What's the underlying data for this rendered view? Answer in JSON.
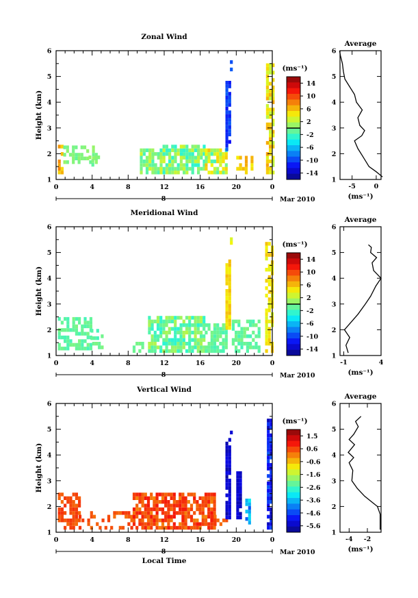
{
  "chart_data": [
    {
      "type": "heatmap",
      "title": "Zonal Wind",
      "ylabel": "Height (km)",
      "xlabel": "",
      "x_ticks": [
        "0",
        "4",
        "8",
        "12",
        "16",
        "20",
        "0"
      ],
      "y_ticks": [
        "1",
        "2",
        "3",
        "4",
        "5",
        "6"
      ],
      "ylim": [
        1,
        6
      ],
      "xlim": [
        0,
        24
      ],
      "day_label": "8",
      "date_label": "Mar 2010",
      "colorbar": {
        "unit": "(ms⁻¹)",
        "ticks": [
          "14",
          "10",
          "6",
          "2",
          "-2",
          "-6",
          "-10",
          "-14"
        ],
        "min": -16,
        "max": 16
      },
      "profile": {
        "title": "Average",
        "xlabel": "(ms⁻¹)",
        "x_ticks": [
          "-5",
          "0"
        ],
        "xlim": [
          -7.5,
          1
        ],
        "points": [
          [
            1.3,
            1.1
          ],
          [
            0,
            1.3
          ],
          [
            -1.5,
            1.5
          ],
          [
            -2.8,
            1.9
          ],
          [
            -3.8,
            2.2
          ],
          [
            -4.5,
            2.5
          ],
          [
            -3.0,
            2.7
          ],
          [
            -2.4,
            2.9
          ],
          [
            -3.4,
            3.1
          ],
          [
            -3.8,
            3.4
          ],
          [
            -2.9,
            3.7
          ],
          [
            -4.1,
            4.0
          ],
          [
            -4.5,
            4.3
          ],
          [
            -5.5,
            4.6
          ],
          [
            -6.5,
            4.9
          ],
          [
            -6.8,
            5.2
          ],
          [
            -7.0,
            5.5
          ],
          [
            -7.4,
            5.8
          ],
          [
            -7.6,
            6.0
          ]
        ]
      }
    },
    {
      "type": "heatmap",
      "title": "Meridional Wind",
      "ylabel": "Height (km)",
      "xlabel": "",
      "x_ticks": [
        "0",
        "4",
        "8",
        "12",
        "16",
        "20",
        "0"
      ],
      "y_ticks": [
        "1",
        "2",
        "3",
        "4",
        "5",
        "6"
      ],
      "ylim": [
        1,
        6
      ],
      "xlim": [
        0,
        24
      ],
      "day_label": "8",
      "date_label": "Mar 2010",
      "colorbar": {
        "unit": "(ms⁻¹)",
        "ticks": [
          "14",
          "10",
          "6",
          "2",
          "-2",
          "-6",
          "-10",
          "-14"
        ],
        "min": -16,
        "max": 16
      },
      "profile": {
        "title": "Average",
        "xlabel": "(ms⁻¹)",
        "x_ticks": [
          "-1",
          "4"
        ],
        "xlim": [
          -1.5,
          4
        ],
        "points": [
          [
            -0.4,
            1.1
          ],
          [
            -0.7,
            1.4
          ],
          [
            -0.2,
            1.7
          ],
          [
            -0.9,
            2.0
          ],
          [
            0.0,
            2.3
          ],
          [
            0.9,
            2.6
          ],
          [
            1.9,
            3.0
          ],
          [
            2.6,
            3.3
          ],
          [
            3.3,
            3.7
          ],
          [
            4.0,
            4.0
          ],
          [
            3.0,
            4.3
          ],
          [
            2.8,
            4.6
          ],
          [
            3.4,
            4.8
          ],
          [
            2.6,
            5.0
          ],
          [
            2.7,
            5.2
          ],
          [
            2.3,
            5.3
          ]
        ]
      }
    },
    {
      "type": "heatmap",
      "title": "Vertical Wind",
      "ylabel": "Height (km)",
      "xlabel": "Local Time",
      "x_ticks": [
        "0",
        "4",
        "8",
        "12",
        "16",
        "20",
        "0"
      ],
      "y_ticks": [
        "1",
        "2",
        "3",
        "4",
        "5",
        "6"
      ],
      "ylim": [
        1,
        6
      ],
      "xlim": [
        0,
        24
      ],
      "day_label": "8",
      "date_label": "Mar 2010",
      "colorbar": {
        "unit": "(ms⁻¹)",
        "ticks": [
          "1.5",
          "0.6",
          "-0.6",
          "-1.6",
          "-2.6",
          "-3.6",
          "-4.6",
          "-5.6"
        ],
        "min": -6.2,
        "max": 1.9
      },
      "profile": {
        "title": "Average",
        "xlabel": "(ms⁻¹)",
        "x_ticks": [
          "-4",
          "-2"
        ],
        "xlim": [
          -5,
          -0.5
        ],
        "points": [
          [
            -0.6,
            1.1
          ],
          [
            -0.6,
            1.4
          ],
          [
            -0.6,
            1.7
          ],
          [
            -0.9,
            2.0
          ],
          [
            -1.6,
            2.2
          ],
          [
            -2.3,
            2.4
          ],
          [
            -3.1,
            2.7
          ],
          [
            -3.7,
            3.0
          ],
          [
            -3.6,
            3.4
          ],
          [
            -4.0,
            3.7
          ],
          [
            -3.5,
            3.9
          ],
          [
            -4.1,
            4.1
          ],
          [
            -3.4,
            4.4
          ],
          [
            -4.0,
            4.6
          ],
          [
            -3.5,
            4.8
          ],
          [
            -3.0,
            5.1
          ],
          [
            -3.3,
            5.3
          ],
          [
            -2.7,
            5.5
          ]
        ]
      }
    }
  ],
  "footer": {
    "xlabel": "Local Time"
  }
}
